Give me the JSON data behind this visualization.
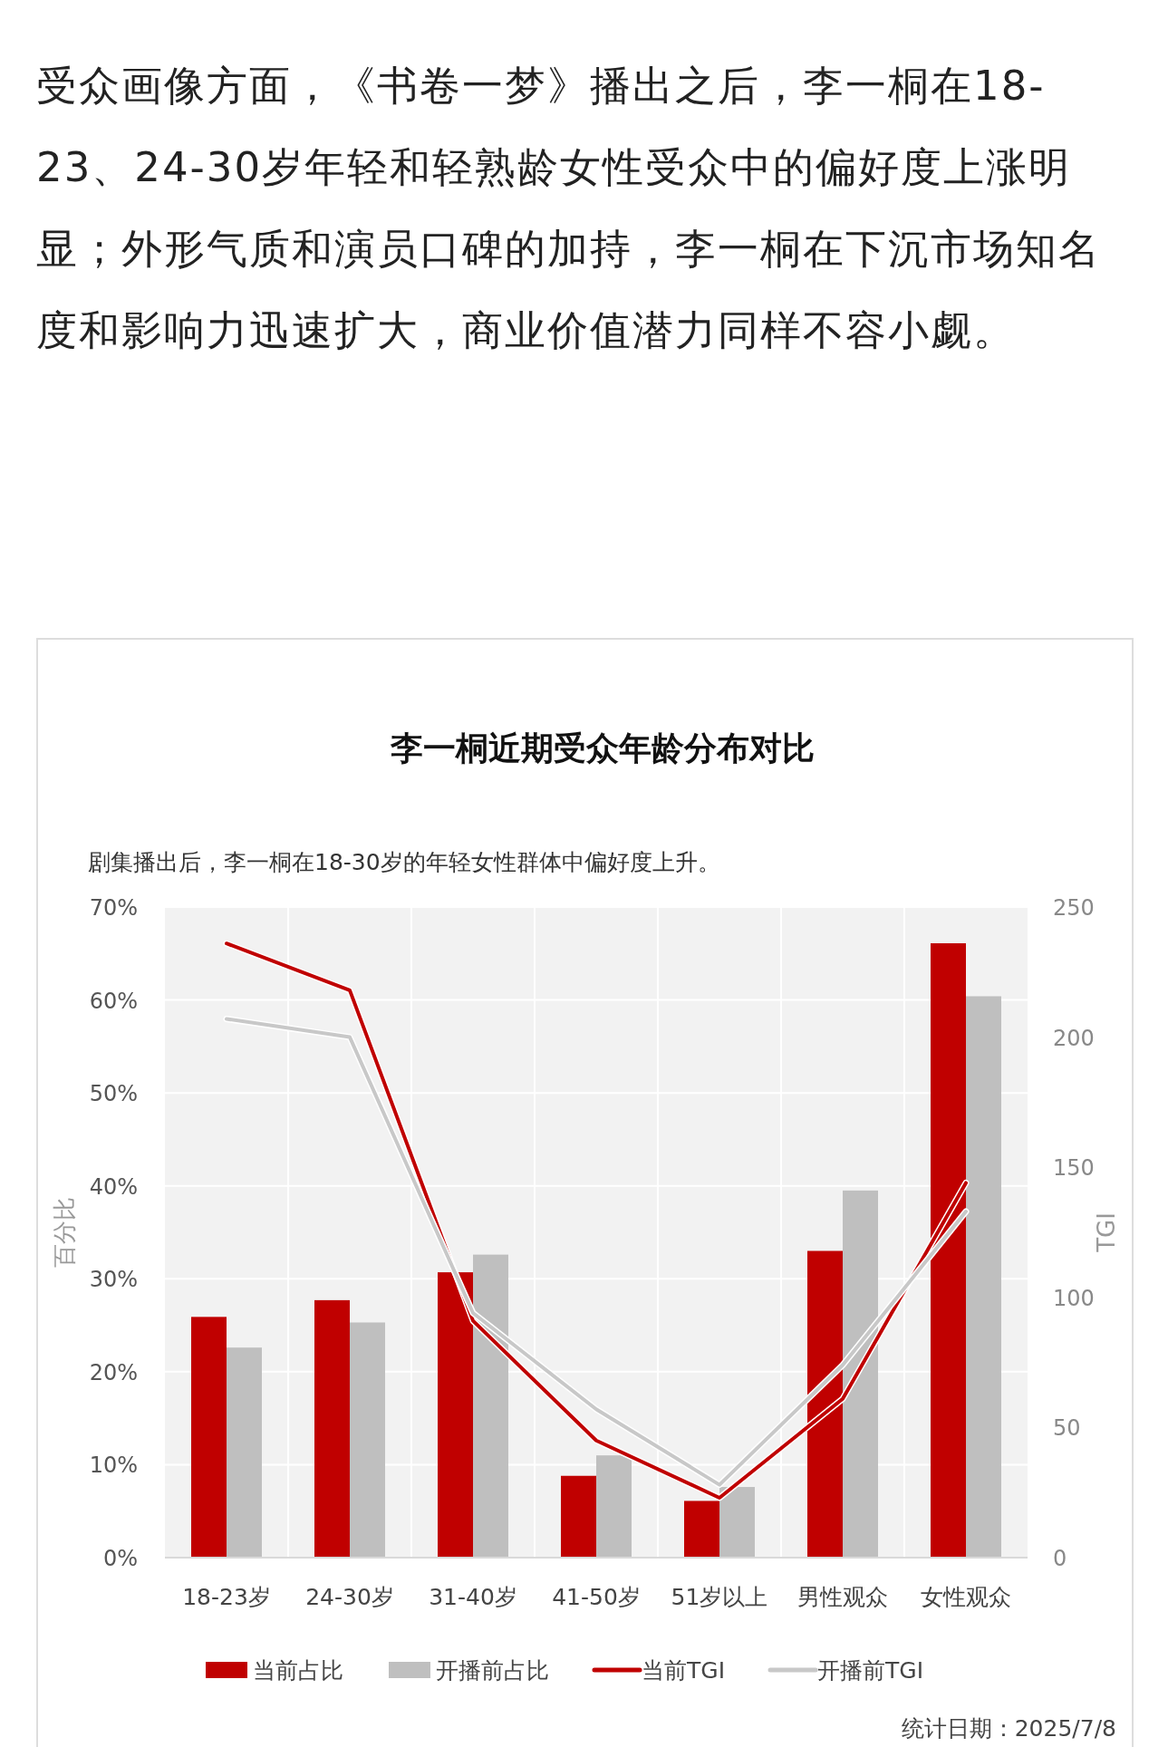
{
  "chart_data": {
    "type": "bar",
    "title": "李一桐近期受众年龄分布对比",
    "subtitle": "剧集播出后，李一桐在18-30岁的年轻女性群体中偏好度上升。",
    "annotations": [
      "受众画像方面，《书卷一梦》播出之后，李一桐在18-23、24-30岁年轻和轻熟龄女性受众中的偏好度上涨明显；外形气质和演员口碑的加持，李一桐在下沉市场知名度和影响力迅速扩大，商业价值潜力同样不容小觑。",
      "统计日期：2025/7/8"
    ],
    "categories": [
      "18-23岁",
      "24-30岁",
      "31-40岁",
      "41-50岁",
      "51岁以上",
      "男性观众",
      "女性观众"
    ],
    "ylabel": "百分比",
    "y2label": "TGI",
    "ylim": [
      0,
      70
    ],
    "yticks": [
      {
        "value": 0,
        "label": "0%"
      },
      {
        "value": 10,
        "label": "10%"
      },
      {
        "value": 20,
        "label": "20%"
      },
      {
        "value": 30,
        "label": "30%"
      },
      {
        "value": 40,
        "label": "40%"
      },
      {
        "value": 50,
        "label": "50%"
      },
      {
        "value": 60,
        "label": "60%"
      },
      {
        "value": 70,
        "label": "70%"
      }
    ],
    "y2lim": [
      0,
      250
    ],
    "y2ticks": [
      0,
      50,
      100,
      150,
      200,
      250
    ],
    "grid": true,
    "legend": "bottom",
    "line_style": "solid",
    "series": [
      {
        "name": "当前占比",
        "color": "#c00000",
        "values": [
          25.9,
          27.7,
          30.7,
          8.8,
          6.1,
          33.0,
          66.1
        ]
      },
      {
        "name": "开播前占比",
        "color": "#bfbfbf",
        "values": [
          22.6,
          25.3,
          32.6,
          11.0,
          7.6,
          39.5,
          60.4
        ]
      },
      {
        "name": "当前TGI",
        "type": "line",
        "axis": "y2",
        "color": "#c00000",
        "values": [
          236,
          218,
          91,
          45,
          23,
          61,
          144
        ]
      },
      {
        "name": "开播前TGI",
        "type": "line",
        "axis": "y2",
        "color": "#c8c8c8",
        "values": [
          207,
          200,
          94,
          57,
          28,
          74,
          133
        ]
      }
    ]
  }
}
